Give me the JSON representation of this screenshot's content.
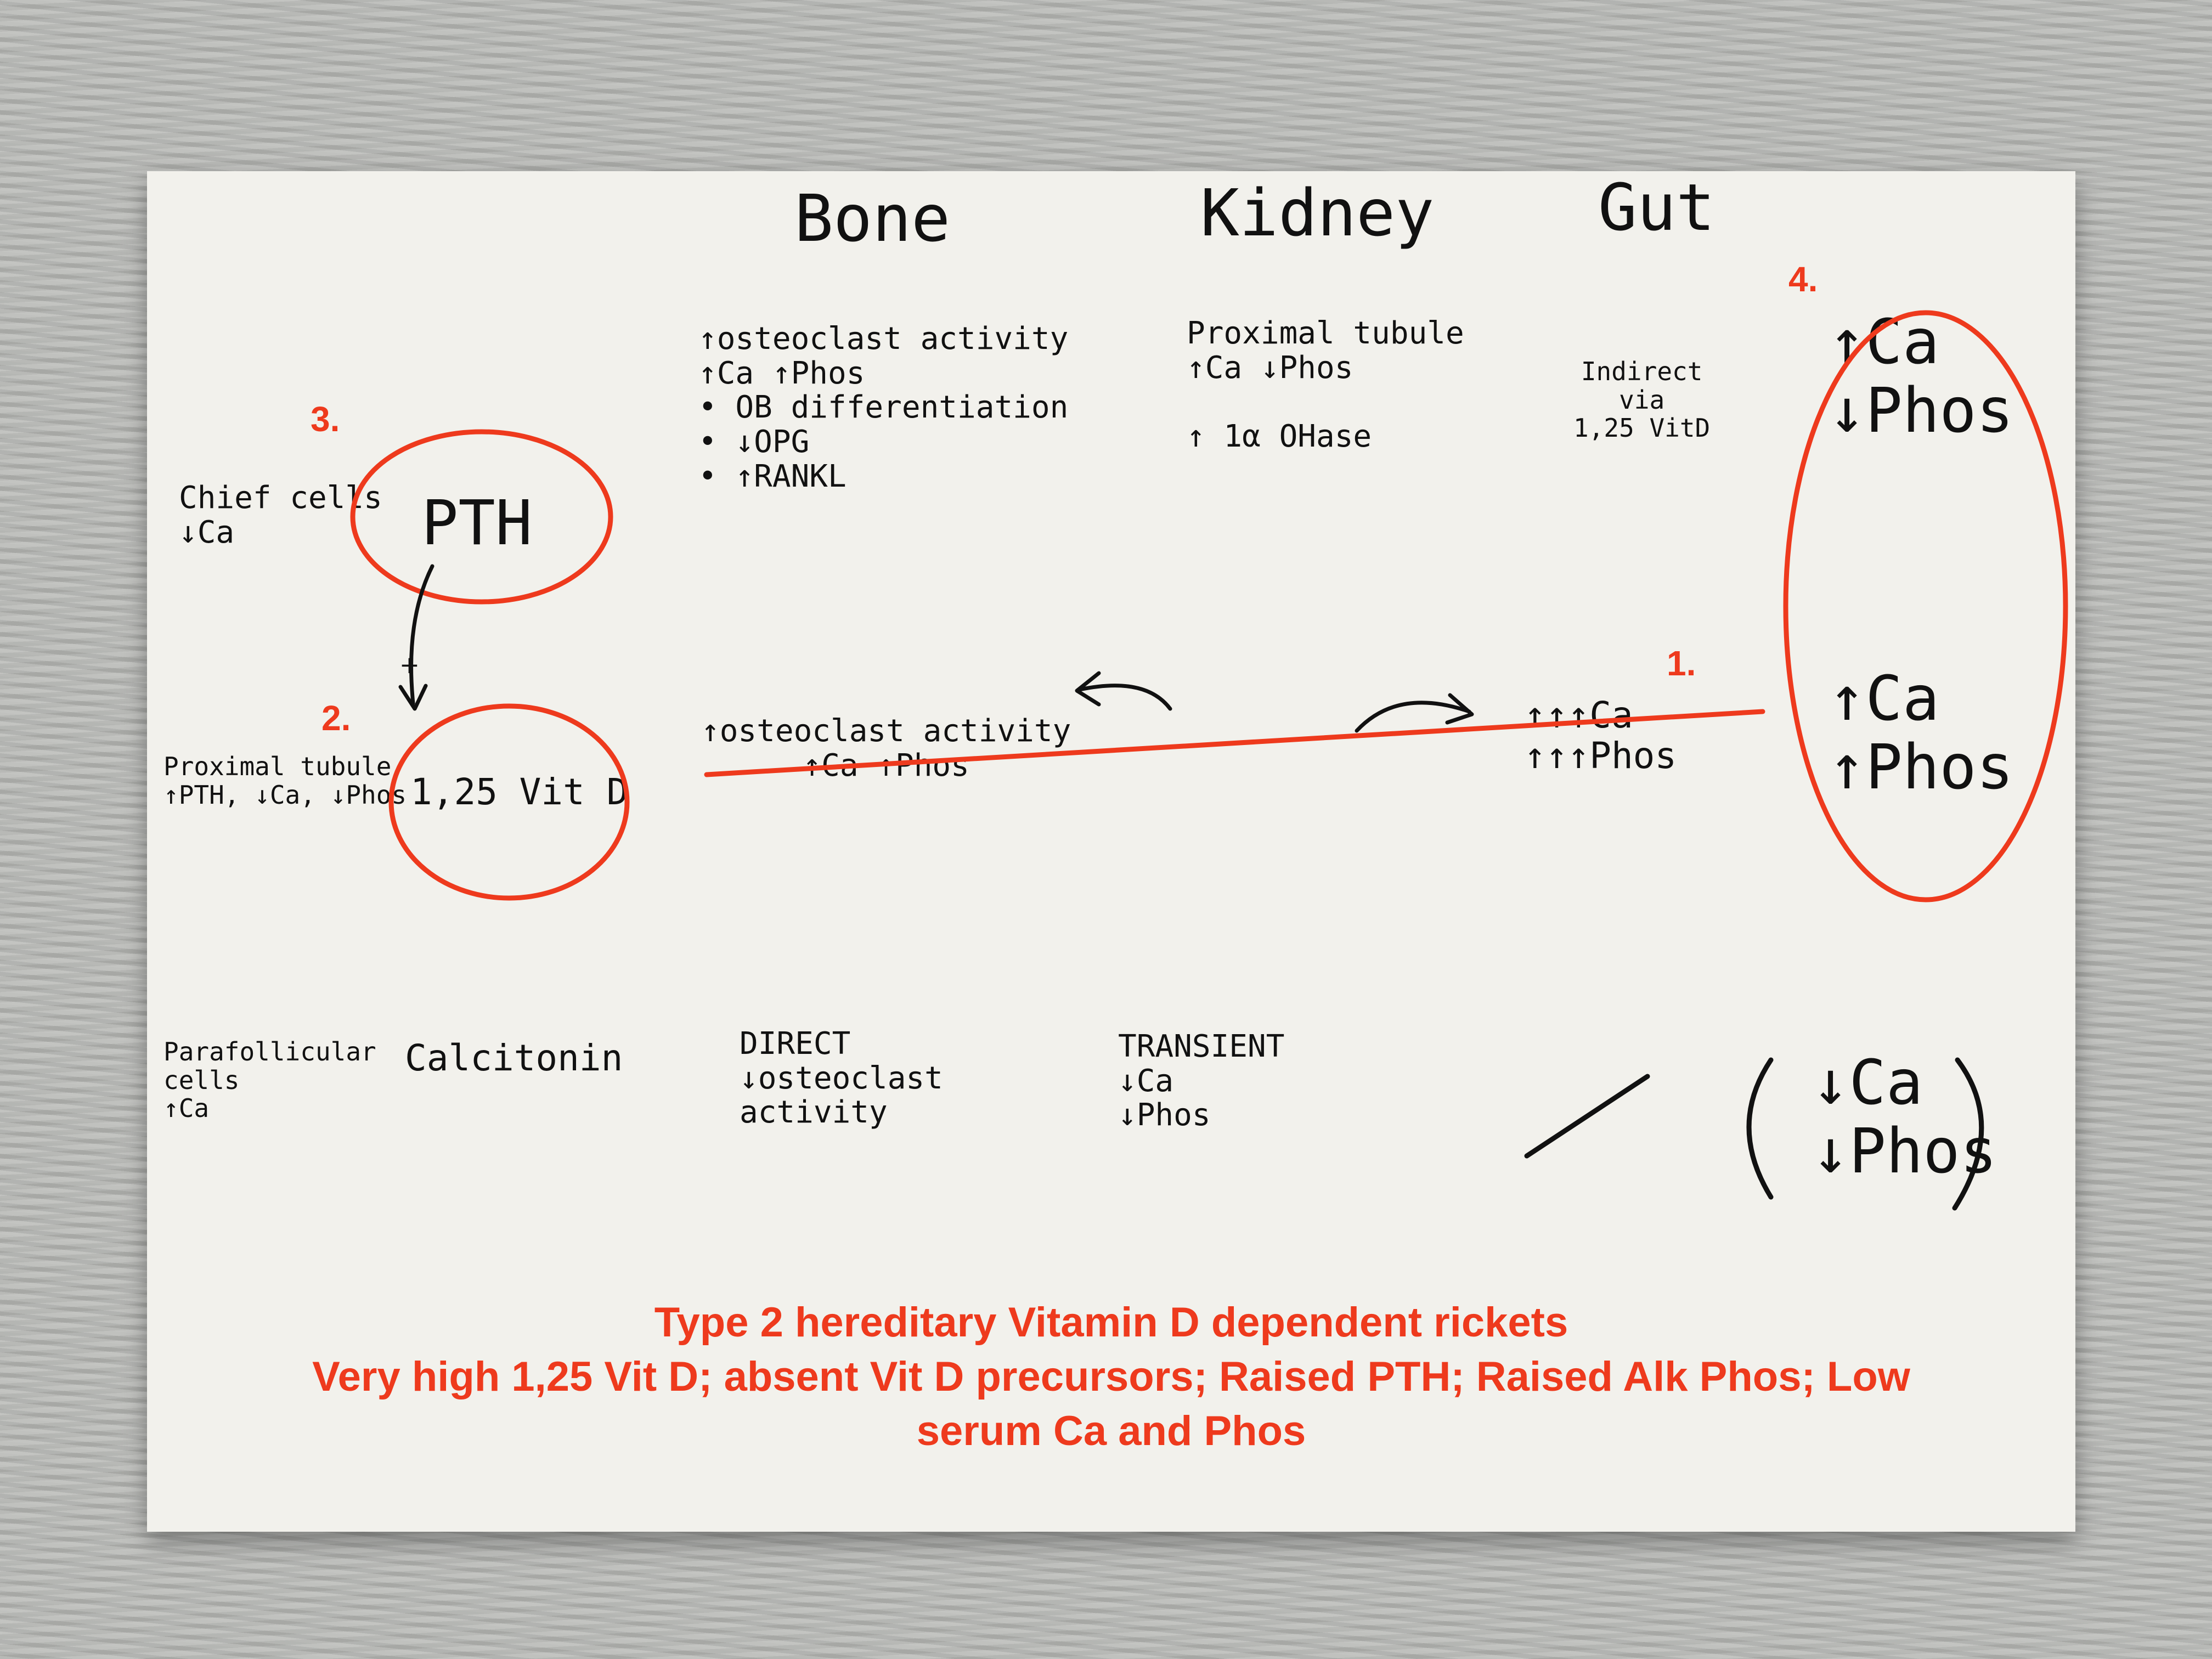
{
  "columns": [
    "Bone",
    "Kidney",
    "Gut"
  ],
  "markers": [
    "1.",
    "2.",
    "3.",
    "4."
  ],
  "pth_row": {
    "source": "Chief cells\n↓Ca",
    "hormone": "PTH",
    "bone": "↑osteoclast activity\n↑Ca ↑Phos\n• OB differentiation\n• ↓OPG\n• ↑RANKL",
    "kidney": "Proximal tubule\n↑Ca ↓Phos\n\n↑ 1α OHase",
    "gut": "Indirect\nvia\n1,25 VitD",
    "net": "↑Ca\n↓Phos"
  },
  "pth_to_vitd_sign": "+",
  "vitd_row": {
    "source": "Proximal tubule\n↑PTH, ↓Ca, ↓Phos",
    "hormone": "1,25 Vit D",
    "bone": "↑osteoclast activity\n↑Ca ↑Phos",
    "gut": "↑↑↑Ca\n↑↑↑Phos",
    "net": "↑Ca\n↑Phos"
  },
  "calcitonin_row": {
    "source": "Parafollicular\ncells\n↑Ca",
    "hormone": "Calcitonin",
    "bone": "DIRECT\n↓osteoclast\nactivity",
    "kidney": "TRANSIENT\n↓Ca\n↓Phos",
    "net": "↓Ca\n↓Phos"
  },
  "caption": {
    "line1": "Type 2 hereditary Vitamin D dependent rickets",
    "line2": "Very high 1,25 Vit D; absent Vit D precursors; Raised PTH; Raised Alk Phos; Low serum Ca and Phos"
  },
  "colors": {
    "annotation": "#ee3a1d",
    "ink": "#111111",
    "card": "#f2f1ec"
  }
}
